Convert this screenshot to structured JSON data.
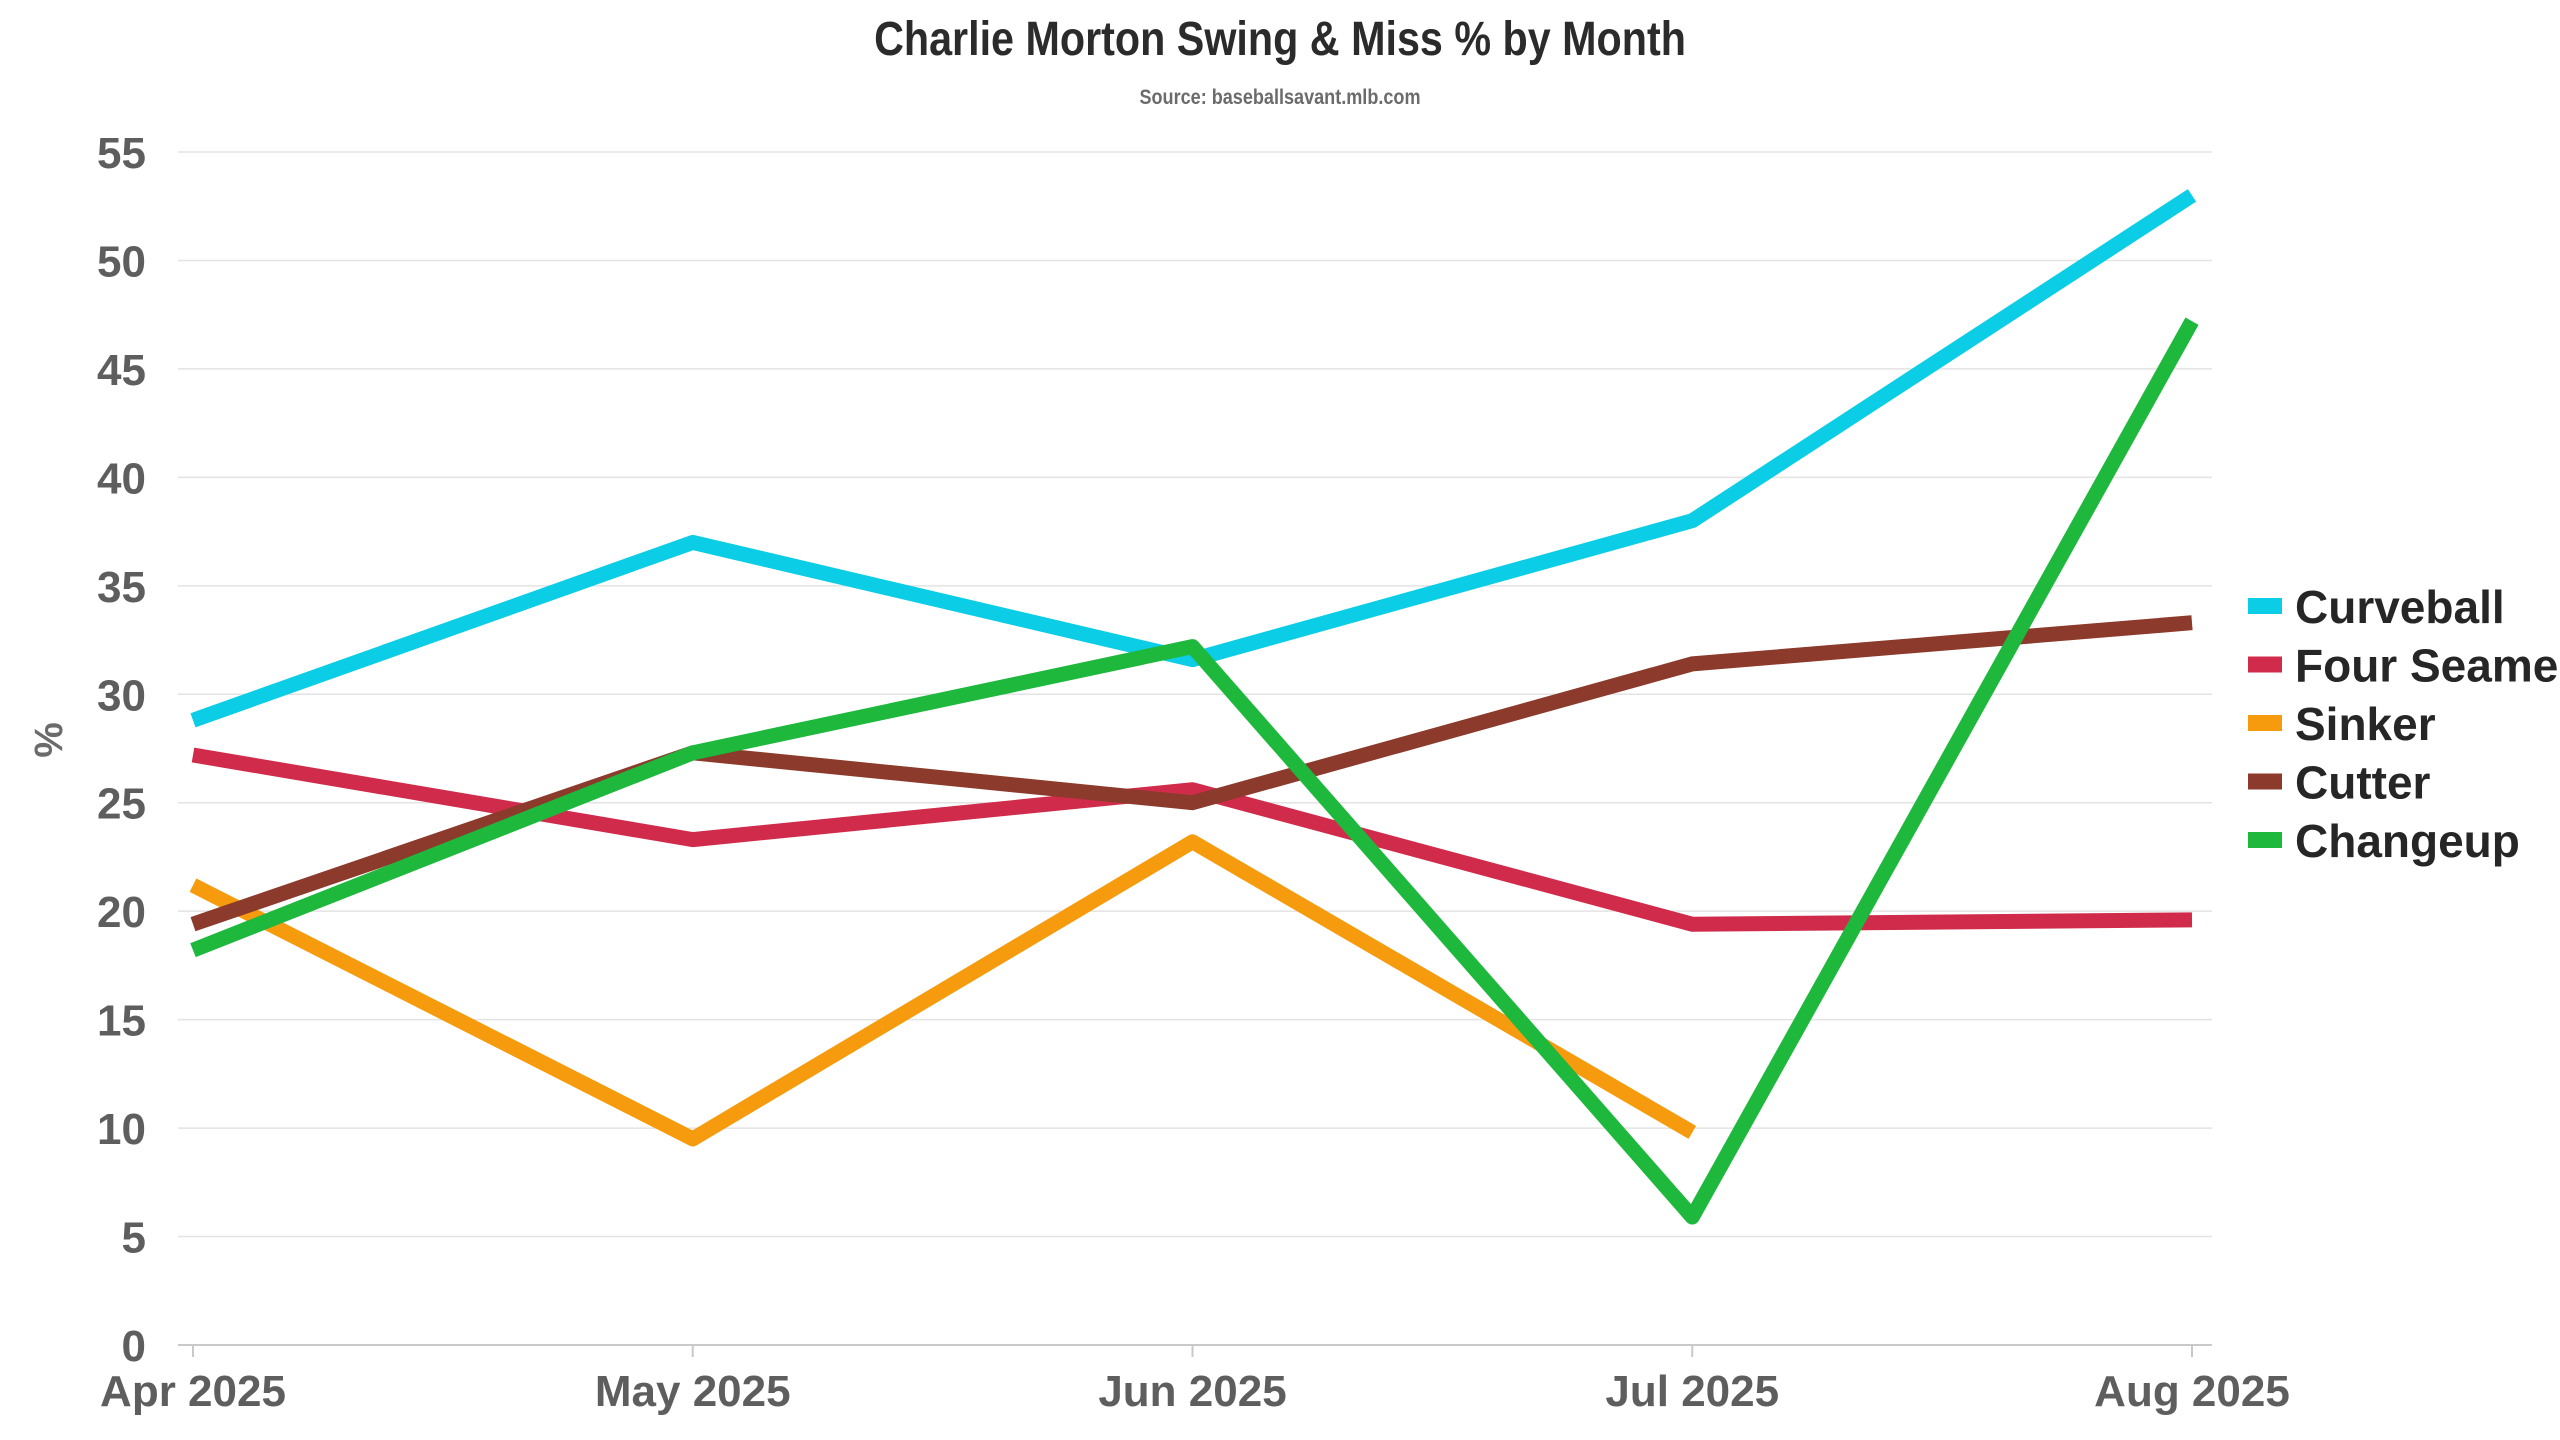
{
  "title": "Charlie Morton Swing & Miss % by Month",
  "subtitle": "Source: baseballsavant.mlb.com",
  "chart_data": {
    "type": "line",
    "title": "Charlie Morton Swing & Miss % by Month",
    "subtitle": "Source: baseballsavant.mlb.com",
    "xlabel": "",
    "ylabel": "%",
    "categories": [
      "Apr 2025",
      "May 2025",
      "Jun 2025",
      "Jul 2025",
      "Aug 2025"
    ],
    "ylim": [
      0,
      55
    ],
    "yticks": [
      0,
      5,
      10,
      15,
      20,
      25,
      30,
      35,
      40,
      45,
      50,
      55
    ],
    "grid": true,
    "legend_position": "right",
    "series": [
      {
        "name": "Curveball",
        "color": "#0ccde6",
        "values": [
          28.8,
          37.0,
          31.6,
          38.0,
          53.0
        ]
      },
      {
        "name": "Four Seamer",
        "color": "#d12b4c",
        "values": [
          27.2,
          23.3,
          25.6,
          19.4,
          19.6
        ]
      },
      {
        "name": "Sinker",
        "color": "#f59b0d",
        "values": [
          21.2,
          9.5,
          23.2,
          9.8,
          null
        ]
      },
      {
        "name": "Cutter",
        "color": "#8b3a2c",
        "values": [
          19.4,
          27.3,
          25.0,
          31.4,
          33.3
        ]
      },
      {
        "name": "Changeup",
        "color": "#1db83c",
        "values": [
          18.2,
          27.3,
          32.2,
          5.9,
          47.2
        ]
      }
    ]
  }
}
